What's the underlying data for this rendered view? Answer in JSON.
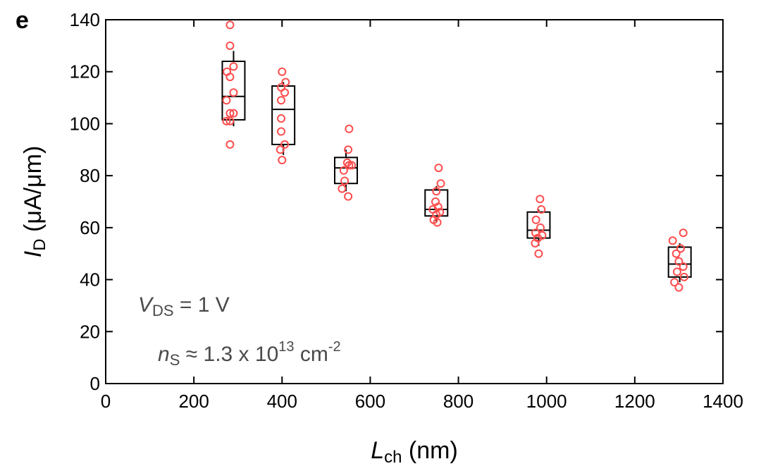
{
  "panel_label": "e",
  "chart_data": {
    "type": "scatter",
    "title": "",
    "xlabel": {
      "main": "L",
      "sub": "ch",
      "unit": " (nm)"
    },
    "ylabel": {
      "main": "I",
      "sub": "D",
      "unit": " (μA/μm)"
    },
    "xlim": [
      0,
      1400
    ],
    "ylim": [
      0,
      140
    ],
    "xticks": [
      0,
      200,
      400,
      600,
      800,
      1000,
      1200,
      1400
    ],
    "yticks": [
      0,
      20,
      40,
      60,
      80,
      100,
      120,
      140
    ],
    "grid": false,
    "point_color": "#ff4d4d",
    "box_color": "#000000",
    "annotations": {
      "vds": {
        "main": "V",
        "sub": "DS",
        "rest": " = 1 V"
      },
      "ns": {
        "main": "n",
        "sub": "S",
        "rest": " ≈ 1.3 x 10",
        "sup1": "13",
        "unit": " cm",
        "sup2": "-2"
      }
    },
    "groups": [
      {
        "x": 290,
        "box": {
          "q1": 101.5,
          "median": 110.5,
          "q3": 124,
          "whisker_low": 99,
          "whisker_high": 128
        },
        "points": [
          [
            282,
            138
          ],
          [
            282,
            130
          ],
          [
            275,
            120
          ],
          [
            290,
            122
          ],
          [
            282,
            118
          ],
          [
            290,
            112
          ],
          [
            274,
            109
          ],
          [
            282,
            104
          ],
          [
            290,
            104
          ],
          [
            274,
            101
          ],
          [
            282,
            101
          ],
          [
            282,
            92
          ]
        ]
      },
      {
        "x": 403,
        "box": {
          "q1": 92,
          "median": 105.5,
          "q3": 114.5,
          "whisker_low": 88,
          "whisker_high": 116
        },
        "points": [
          [
            400,
            120
          ],
          [
            408,
            116
          ],
          [
            398,
            114
          ],
          [
            406,
            112
          ],
          [
            398,
            109
          ],
          [
            398,
            102
          ],
          [
            398,
            97
          ],
          [
            406,
            92
          ],
          [
            396,
            90
          ],
          [
            400,
            86
          ]
        ]
      },
      {
        "x": 545,
        "box": {
          "q1": 77,
          "median": 83,
          "q3": 87,
          "whisker_low": 74,
          "whisker_high": 90
        },
        "points": [
          [
            552,
            98
          ],
          [
            550,
            90
          ],
          [
            548,
            85
          ],
          [
            558,
            84
          ],
          [
            540,
            82
          ],
          [
            552,
            84
          ],
          [
            542,
            78
          ],
          [
            536,
            75
          ],
          [
            550,
            72
          ]
        ]
      },
      {
        "x": 750,
        "box": {
          "q1": 64.5,
          "median": 67,
          "q3": 74.5,
          "whisker_low": 62,
          "whisker_high": 76
        },
        "points": [
          [
            755,
            83
          ],
          [
            760,
            77
          ],
          [
            750,
            74
          ],
          [
            748,
            70
          ],
          [
            754,
            68
          ],
          [
            742,
            67
          ],
          [
            758,
            66
          ],
          [
            750,
            65
          ],
          [
            744,
            63
          ],
          [
            752,
            62
          ]
        ]
      },
      {
        "x": 982,
        "box": {
          "q1": 56,
          "median": 59,
          "q3": 66,
          "whisker_low": 53,
          "whisker_high": 67
        },
        "points": [
          [
            985,
            71
          ],
          [
            988,
            67
          ],
          [
            976,
            63
          ],
          [
            986,
            60
          ],
          [
            975,
            58
          ],
          [
            990,
            57
          ],
          [
            980,
            56
          ],
          [
            974,
            54
          ],
          [
            982,
            50
          ]
        ]
      },
      {
        "x": 1302,
        "box": {
          "q1": 41,
          "median": 46,
          "q3": 52.5,
          "whisker_low": 39,
          "whisker_high": 54
        },
        "points": [
          [
            1310,
            58
          ],
          [
            1286,
            55
          ],
          [
            1304,
            52
          ],
          [
            1294,
            50
          ],
          [
            1300,
            47
          ],
          [
            1310,
            45
          ],
          [
            1296,
            43
          ],
          [
            1312,
            41
          ],
          [
            1290,
            39
          ],
          [
            1300,
            37
          ]
        ]
      }
    ]
  }
}
